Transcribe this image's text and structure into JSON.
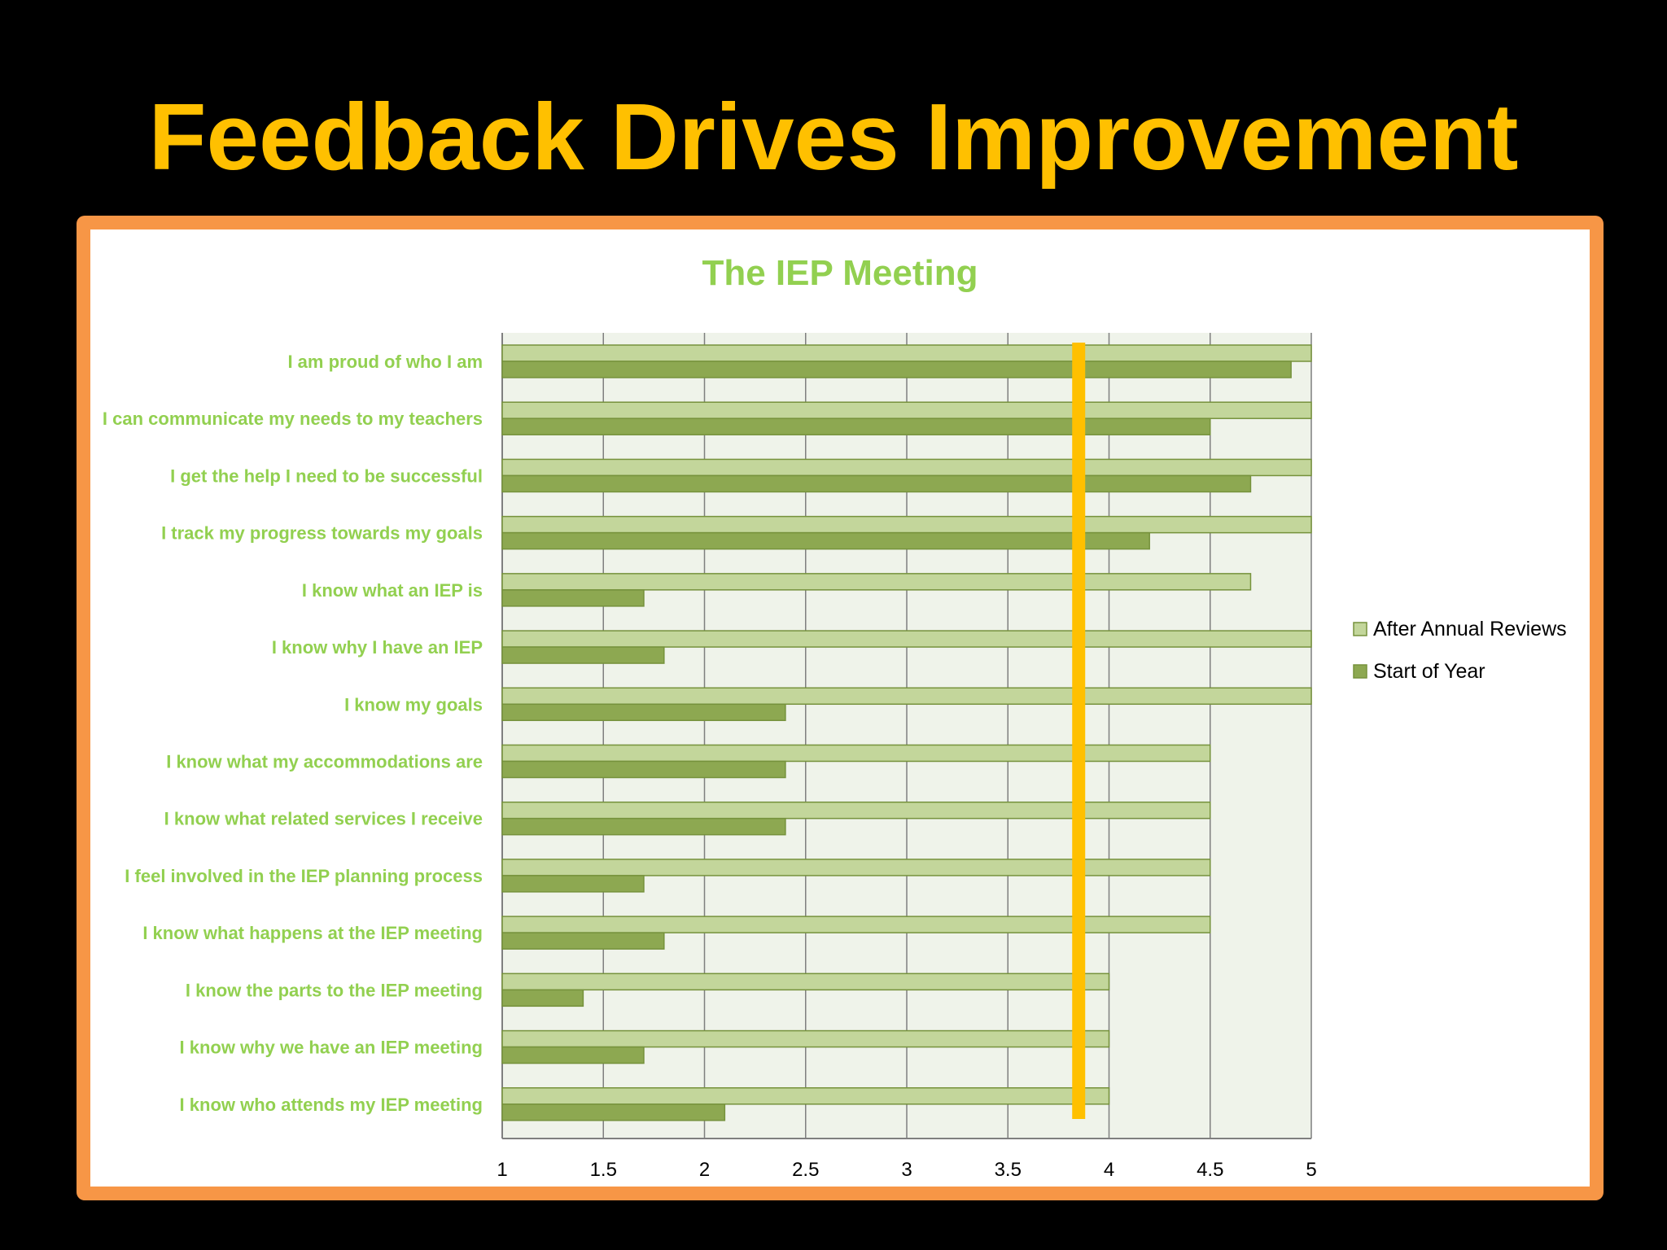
{
  "slide": {
    "title": "Feedback Drives Improvement",
    "title_color": "#FFC000",
    "background": "#000000",
    "frame_color": "#F79646"
  },
  "chart_data": {
    "type": "bar",
    "orientation": "horizontal",
    "title": "The IEP Meeting",
    "title_color": "#92D050",
    "label_color": "#92D050",
    "categories": [
      "I am proud of who I am",
      "I can communicate my needs to my teachers",
      "I get the help I need to be successful",
      "I track my progress towards my goals",
      "I know what an IEP is",
      "I know why I have an IEP",
      "I know my goals",
      "I know what my accommodations are",
      "I know what related services I receive",
      "I feel involved in the IEP planning process",
      "I know what happens at the IEP meeting",
      "I know the parts to the IEP meeting",
      "I know why we have an IEP meeting",
      "I know who attends my IEP meeting"
    ],
    "series": [
      {
        "name": "After Annual Reviews",
        "color": "#C3D69B",
        "values": [
          5,
          5,
          5,
          5,
          4.7,
          5,
          5,
          4.5,
          4.5,
          4.5,
          4.5,
          4,
          4,
          4
        ]
      },
      {
        "name": "Start of Year",
        "color": "#8DA851",
        "values": [
          4.9,
          4.5,
          4.7,
          4.2,
          1.7,
          1.8,
          2.4,
          2.4,
          2.4,
          1.7,
          1.8,
          1.4,
          1.7,
          2.1
        ]
      }
    ],
    "xlim": [
      1,
      5
    ],
    "x_ticks": [
      "1",
      "1.5",
      "2",
      "2.5",
      "3",
      "3.5",
      "4",
      "4.5",
      "5"
    ],
    "grid": true,
    "legend_position": "right",
    "reference_line": {
      "value": 3.85,
      "color": "#FFC000"
    }
  }
}
